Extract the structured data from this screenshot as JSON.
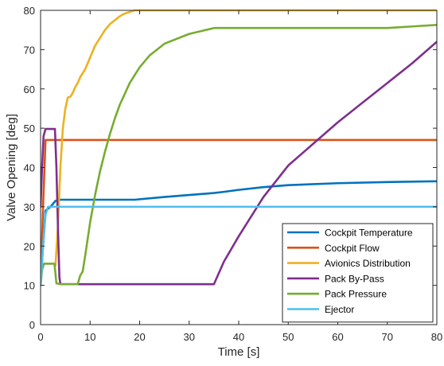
{
  "chart_data": {
    "type": "line",
    "title": "",
    "xlabel": "Time [s]",
    "ylabel": "Valve Opening [deg]",
    "xlim": [
      0,
      80
    ],
    "ylim": [
      0,
      80
    ],
    "xticks": [
      0,
      10,
      20,
      30,
      40,
      50,
      60,
      70,
      80
    ],
    "yticks": [
      0,
      10,
      20,
      30,
      40,
      50,
      60,
      70,
      80
    ],
    "grid": false,
    "legend_position": "bottom-right",
    "series": [
      {
        "name": "Cockpit Temperature",
        "color": "#0072BD",
        "points": [
          [
            0,
            10
          ],
          [
            0.5,
            20
          ],
          [
            1,
            29
          ],
          [
            2,
            30
          ],
          [
            3,
            31.5
          ],
          [
            4,
            31.8
          ],
          [
            10,
            31.8
          ],
          [
            19,
            31.8
          ],
          [
            25,
            32.5
          ],
          [
            30,
            33
          ],
          [
            35,
            33.5
          ],
          [
            37,
            33.8
          ],
          [
            40,
            34.3
          ],
          [
            45,
            35
          ],
          [
            50,
            35.5
          ],
          [
            60,
            36
          ],
          [
            70,
            36.3
          ],
          [
            80,
            36.5
          ]
        ]
      },
      {
        "name": "Cockpit Flow",
        "color": "#D95319",
        "points": [
          [
            0,
            10
          ],
          [
            0.5,
            30
          ],
          [
            1,
            47
          ],
          [
            10,
            47
          ],
          [
            20,
            47
          ],
          [
            30,
            47
          ],
          [
            40,
            47
          ],
          [
            50,
            47
          ],
          [
            60,
            47
          ],
          [
            70,
            47
          ],
          [
            80,
            47
          ]
        ]
      },
      {
        "name": "Avionics Distribution",
        "color": "#EDB120",
        "points": [
          [
            3,
            15
          ],
          [
            3.5,
            25
          ],
          [
            4,
            40
          ],
          [
            4.5,
            50
          ],
          [
            5,
            55
          ],
          [
            5.5,
            57.8
          ],
          [
            6,
            58
          ],
          [
            6.5,
            59
          ],
          [
            7,
            60.5
          ],
          [
            7.5,
            61.5
          ],
          [
            8,
            63
          ],
          [
            9,
            65
          ],
          [
            10,
            68
          ],
          [
            11,
            71
          ],
          [
            12,
            73
          ],
          [
            13,
            75
          ],
          [
            14,
            76.5
          ],
          [
            15,
            77.5
          ],
          [
            16,
            78.5
          ],
          [
            17,
            79.2
          ],
          [
            18,
            79.6
          ],
          [
            19,
            80
          ],
          [
            30,
            80
          ],
          [
            40,
            80
          ],
          [
            50,
            80
          ],
          [
            60,
            80
          ],
          [
            70,
            80
          ],
          [
            80,
            80
          ]
        ]
      },
      {
        "name": "Pack By-Pass",
        "color": "#7E2F8E",
        "points": [
          [
            0,
            30
          ],
          [
            0.3,
            40
          ],
          [
            0.6,
            48
          ],
          [
            1,
            49.8
          ],
          [
            2,
            49.8
          ],
          [
            2.9,
            49.8
          ],
          [
            3.2,
            40
          ],
          [
            3.5,
            25
          ],
          [
            3.8,
            12
          ],
          [
            4,
            10.3
          ],
          [
            10,
            10.3
          ],
          [
            20,
            10.3
          ],
          [
            30,
            10.3
          ],
          [
            35,
            10.3
          ],
          [
            37,
            16
          ],
          [
            40,
            22.5
          ],
          [
            45,
            32.5
          ],
          [
            50,
            40.5
          ],
          [
            55,
            46
          ],
          [
            60,
            51.5
          ],
          [
            65,
            56.5
          ],
          [
            70,
            61.5
          ],
          [
            75,
            66.5
          ],
          [
            80,
            72
          ]
        ]
      },
      {
        "name": "Pack Pressure",
        "color": "#77AC30",
        "points": [
          [
            0,
            10
          ],
          [
            0.3,
            14
          ],
          [
            0.7,
            15.5
          ],
          [
            2,
            15.5
          ],
          [
            2.8,
            15.5
          ],
          [
            3.2,
            10.5
          ],
          [
            4,
            10.3
          ],
          [
            7,
            10.3
          ],
          [
            7.5,
            10.3
          ],
          [
            8,
            12.5
          ],
          [
            8.5,
            13.5
          ],
          [
            9,
            17.5
          ],
          [
            10,
            26
          ],
          [
            11,
            33
          ],
          [
            12,
            39
          ],
          [
            13,
            44
          ],
          [
            14,
            48.5
          ],
          [
            15,
            52.5
          ],
          [
            16,
            56
          ],
          [
            18,
            61.5
          ],
          [
            20,
            65.5
          ],
          [
            22,
            68.5
          ],
          [
            25,
            71.5
          ],
          [
            30,
            74
          ],
          [
            35,
            75.5
          ],
          [
            40,
            75.5
          ],
          [
            50,
            75.5
          ],
          [
            60,
            75.5
          ],
          [
            70,
            75.5
          ],
          [
            75,
            75.9
          ],
          [
            80,
            76.3
          ]
        ]
      },
      {
        "name": "Ejector",
        "color": "#4DBEEE",
        "points": [
          [
            0,
            10
          ],
          [
            0.5,
            20
          ],
          [
            1,
            28
          ],
          [
            1.5,
            30
          ],
          [
            10,
            30
          ],
          [
            20,
            30
          ],
          [
            30,
            30
          ],
          [
            40,
            30
          ],
          [
            50,
            30
          ],
          [
            60,
            30
          ],
          [
            70,
            30
          ],
          [
            80,
            30
          ]
        ]
      }
    ]
  }
}
